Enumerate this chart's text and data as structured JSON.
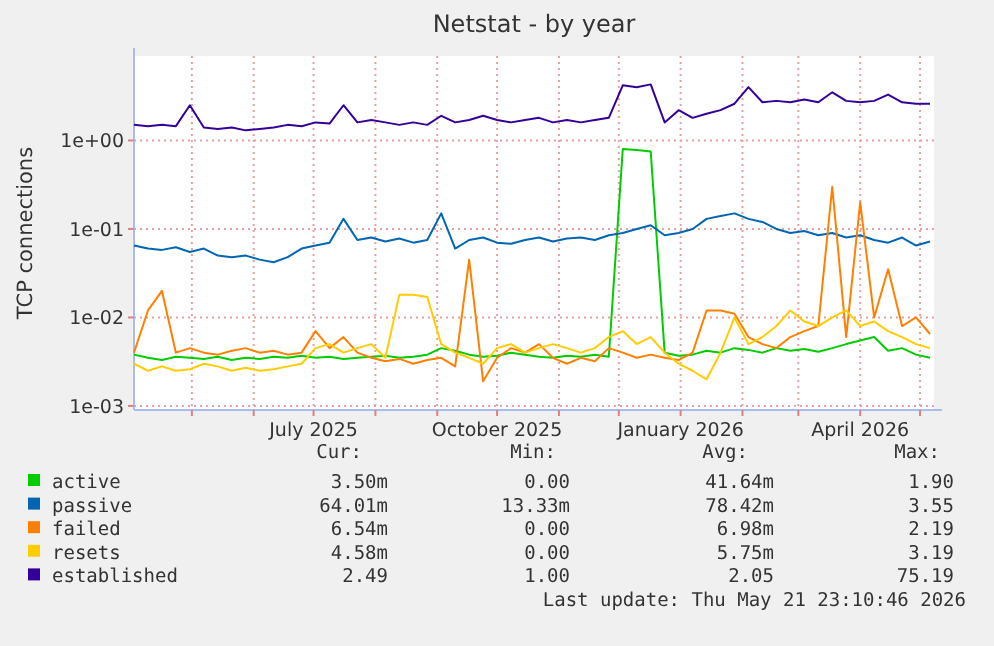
{
  "chart_data": {
    "type": "line",
    "title": "Netstat - by year",
    "ylabel": "TCP connections",
    "log": "y",
    "grid": true,
    "legend": "bottom",
    "marker": "none",
    "line_style": "solid",
    "x": [
      "2025-04-02",
      "2025-04-09",
      "2025-04-16",
      "2025-04-23",
      "2025-04-30",
      "2025-05-07",
      "2025-05-14",
      "2025-05-21",
      "2025-05-28",
      "2025-06-04",
      "2025-06-11",
      "2025-06-18",
      "2025-06-25",
      "2025-07-02",
      "2025-07-09",
      "2025-07-16",
      "2025-07-23",
      "2025-07-30",
      "2025-08-06",
      "2025-08-13",
      "2025-08-20",
      "2025-08-27",
      "2025-09-03",
      "2025-09-10",
      "2025-09-17",
      "2025-09-24",
      "2025-10-01",
      "2025-10-08",
      "2025-10-15",
      "2025-10-22",
      "2025-10-29",
      "2025-11-05",
      "2025-11-12",
      "2025-11-19",
      "2025-11-26",
      "2025-12-03",
      "2025-12-10",
      "2025-12-17",
      "2025-12-24",
      "2025-12-31",
      "2026-01-07",
      "2026-01-14",
      "2026-01-21",
      "2026-01-28",
      "2026-02-04",
      "2026-02-11",
      "2026-02-18",
      "2026-02-25",
      "2026-03-04",
      "2026-03-11",
      "2026-03-18",
      "2026-03-25",
      "2026-04-01",
      "2026-04-08",
      "2026-04-15",
      "2026-04-22",
      "2026-04-29",
      "2026-05-06"
    ],
    "xlim": [
      "2025-04-02",
      "2026-05-08"
    ],
    "xticks": [
      {
        "value": "2025-05-01",
        "label": null
      },
      {
        "value": "2025-06-01",
        "label": null
      },
      {
        "value": "2025-07-01",
        "label": "July 2025"
      },
      {
        "value": "2025-08-01",
        "label": null
      },
      {
        "value": "2025-09-01",
        "label": null
      },
      {
        "value": "2025-10-01",
        "label": "October 2025"
      },
      {
        "value": "2025-11-01",
        "label": null
      },
      {
        "value": "2025-12-01",
        "label": null
      },
      {
        "value": "2026-01-01",
        "label": "January 2026"
      },
      {
        "value": "2026-02-01",
        "label": null
      },
      {
        "value": "2026-03-01",
        "label": null
      },
      {
        "value": "2026-04-01",
        "label": "April 2026"
      },
      {
        "value": "2026-05-01",
        "label": null
      }
    ],
    "ylim": [
      0.0009,
      9
    ],
    "yticks": [
      {
        "value": 0.001,
        "label": "1e-03"
      },
      {
        "value": 0.01,
        "label": "1e-02"
      },
      {
        "value": 0.1,
        "label": "1e-01"
      },
      {
        "value": 1,
        "label": "1e+00"
      }
    ],
    "series": [
      {
        "name": "active",
        "color": "#00cc00",
        "values": [
          0.0038,
          0.0035,
          0.0033,
          0.0036,
          0.0035,
          0.0034,
          0.0036,
          0.0033,
          0.0035,
          0.0034,
          0.0036,
          0.0035,
          0.0037,
          0.0035,
          0.0036,
          0.0034,
          0.0035,
          0.0036,
          0.0037,
          0.0035,
          0.0036,
          0.0038,
          0.0045,
          0.0042,
          0.0038,
          0.0036,
          0.0037,
          0.004,
          0.0038,
          0.0036,
          0.0035,
          0.0037,
          0.0036,
          0.0038,
          0.0036,
          0.8,
          0.78,
          0.75,
          0.004,
          0.0037,
          0.0038,
          0.0042,
          0.004,
          0.0045,
          0.0043,
          0.004,
          0.0045,
          0.0042,
          0.0044,
          0.0041,
          0.0045,
          0.005,
          0.0055,
          0.006,
          0.0042,
          0.0045,
          0.0038,
          0.0035
        ]
      },
      {
        "name": "passive",
        "color": "#0066b3",
        "values": [
          0.065,
          0.06,
          0.058,
          0.062,
          0.055,
          0.06,
          0.05,
          0.048,
          0.05,
          0.045,
          0.042,
          0.048,
          0.06,
          0.065,
          0.07,
          0.13,
          0.075,
          0.08,
          0.072,
          0.078,
          0.07,
          0.075,
          0.15,
          0.06,
          0.075,
          0.08,
          0.07,
          0.068,
          0.075,
          0.08,
          0.072,
          0.078,
          0.08,
          0.075,
          0.085,
          0.09,
          0.1,
          0.11,
          0.085,
          0.09,
          0.1,
          0.13,
          0.14,
          0.15,
          0.13,
          0.12,
          0.1,
          0.09,
          0.095,
          0.085,
          0.09,
          0.08,
          0.085,
          0.075,
          0.07,
          0.08,
          0.065,
          0.072
        ]
      },
      {
        "name": "failed",
        "color": "#ff8000",
        "values": [
          0.004,
          0.012,
          0.02,
          0.004,
          0.0045,
          0.004,
          0.0038,
          0.0042,
          0.0045,
          0.004,
          0.0042,
          0.0038,
          0.004,
          0.007,
          0.0045,
          0.006,
          0.004,
          0.0035,
          0.0032,
          0.0034,
          0.003,
          0.0033,
          0.0035,
          0.0028,
          0.045,
          0.0019,
          0.0035,
          0.0045,
          0.004,
          0.005,
          0.0035,
          0.003,
          0.0035,
          0.0032,
          0.0045,
          0.004,
          0.0035,
          0.0038,
          0.0035,
          0.0033,
          0.004,
          0.012,
          0.012,
          0.011,
          0.006,
          0.005,
          0.0045,
          0.006,
          0.007,
          0.008,
          0.3,
          0.006,
          0.2,
          0.01,
          0.035,
          0.008,
          0.01,
          0.0065
        ]
      },
      {
        "name": "resets",
        "color": "#ffcc00",
        "values": [
          0.003,
          0.0025,
          0.0028,
          0.0025,
          0.0026,
          0.003,
          0.0028,
          0.0025,
          0.0027,
          0.0025,
          0.0026,
          0.0028,
          0.003,
          0.0045,
          0.005,
          0.004,
          0.0045,
          0.005,
          0.0035,
          0.018,
          0.018,
          0.017,
          0.005,
          0.004,
          0.0035,
          0.003,
          0.0045,
          0.005,
          0.004,
          0.0045,
          0.005,
          0.0045,
          0.004,
          0.0045,
          0.006,
          0.007,
          0.005,
          0.006,
          0.004,
          0.003,
          0.0025,
          0.002,
          0.004,
          0.01,
          0.005,
          0.006,
          0.008,
          0.012,
          0.009,
          0.008,
          0.01,
          0.012,
          0.008,
          0.009,
          0.007,
          0.006,
          0.005,
          0.0045
        ]
      },
      {
        "name": "established",
        "color": "#330099",
        "values": [
          1.5,
          1.45,
          1.5,
          1.45,
          2.5,
          1.4,
          1.35,
          1.4,
          1.3,
          1.35,
          1.4,
          1.5,
          1.45,
          1.6,
          1.55,
          2.5,
          1.6,
          1.7,
          1.6,
          1.5,
          1.6,
          1.5,
          1.9,
          1.6,
          1.7,
          1.9,
          1.7,
          1.6,
          1.7,
          1.8,
          1.6,
          1.7,
          1.6,
          1.7,
          1.8,
          4.2,
          4.0,
          4.3,
          1.6,
          2.2,
          1.8,
          2.0,
          2.2,
          2.6,
          4.0,
          2.7,
          2.8,
          2.7,
          2.9,
          2.7,
          3.5,
          2.8,
          2.7,
          2.8,
          3.3,
          2.7,
          2.6,
          2.6
        ]
      }
    ],
    "annotations": [
      "Cur:",
      "Min:",
      "Avg:",
      "Max:",
      "3.50m",
      "0.00",
      "41.64m",
      "1.90",
      "64.01m",
      "13.33m",
      "78.42m",
      "3.55",
      "6.54m",
      "0.00",
      "6.98m",
      "2.19",
      "4.58m",
      "0.00",
      "5.75m",
      "3.19",
      "2.49",
      "1.00",
      "2.05",
      "75.19",
      "Last update: Thu May 21 23:10:46 2026"
    ]
  }
}
